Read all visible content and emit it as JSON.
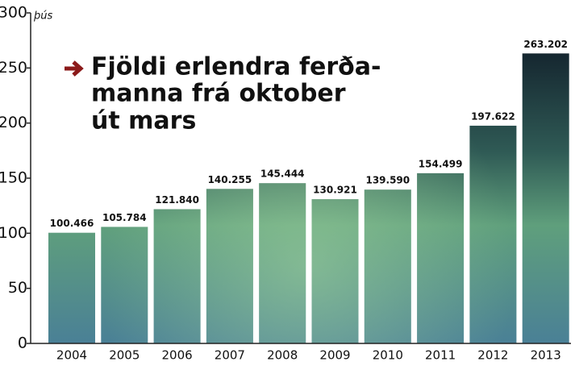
{
  "chart_data": {
    "type": "bar",
    "title": [
      "Fjöldi erlendra ferða-",
      "manna frá oktober",
      "út mars"
    ],
    "y_unit": "þús",
    "categories": [
      "2004",
      "2005",
      "2006",
      "2007",
      "2008",
      "2009",
      "2010",
      "2011",
      "2012",
      "2013"
    ],
    "values": [
      100.466,
      105.784,
      121.84,
      140.255,
      145.444,
      130.921,
      139.59,
      154.499,
      197.622,
      263.202
    ],
    "value_labels": [
      "100.466",
      "105.784",
      "121.840",
      "140.255",
      "145.444",
      "130.921",
      "139.590",
      "154.499",
      "197.622",
      "263.202"
    ],
    "ylim": [
      0,
      300
    ],
    "yticks": [
      0,
      50,
      100,
      150,
      200,
      250,
      300
    ]
  }
}
